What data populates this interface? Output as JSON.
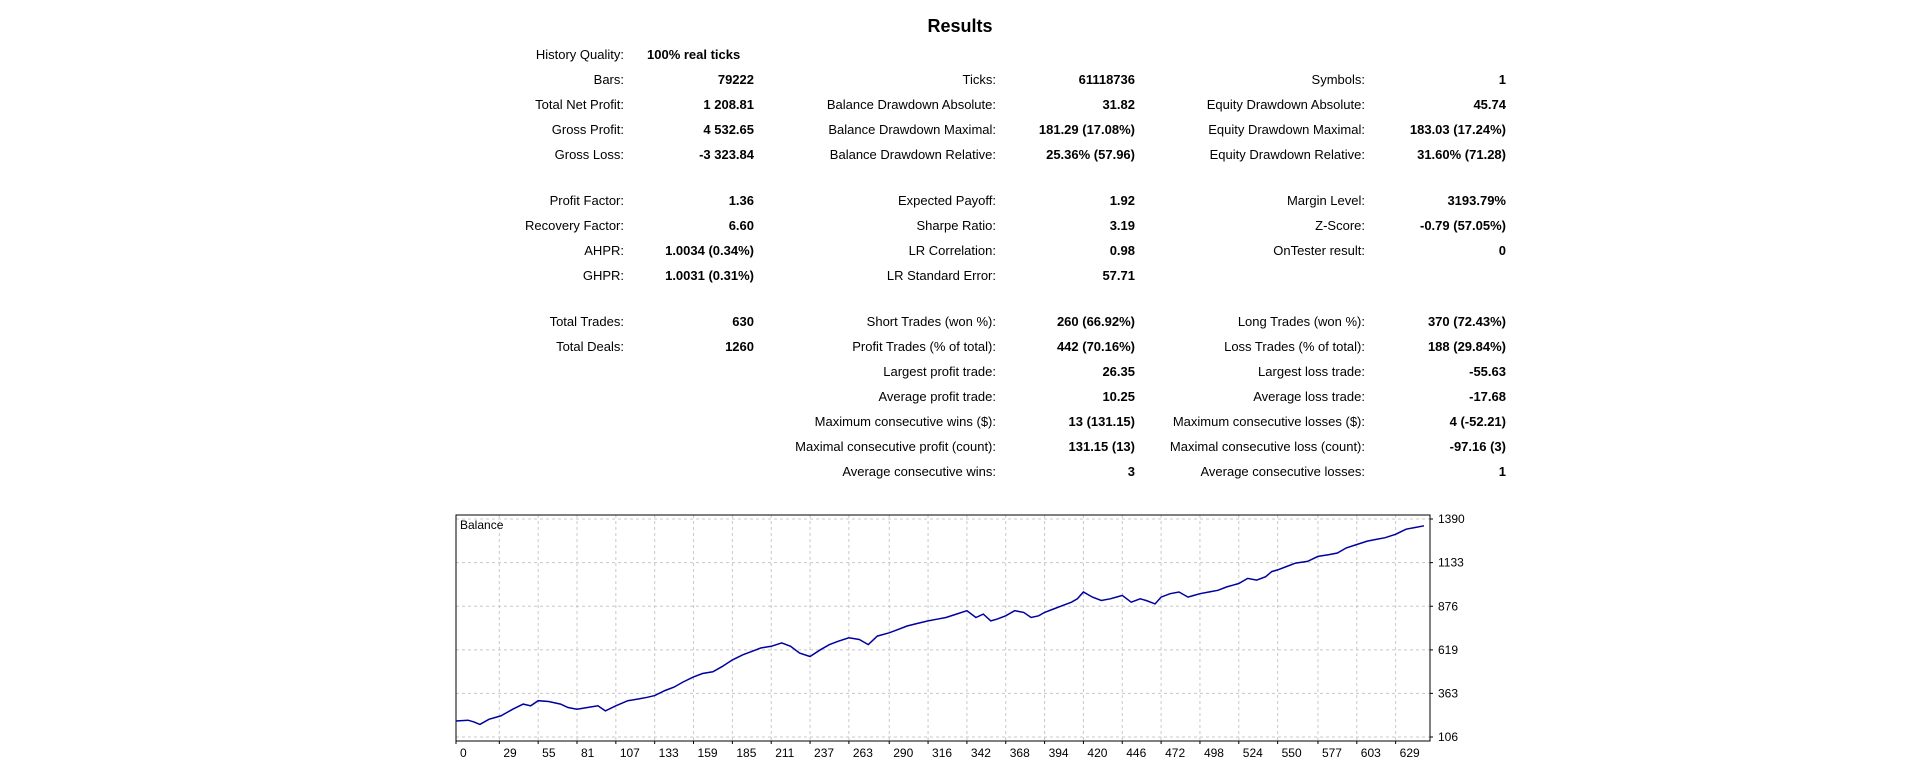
{
  "header": {
    "title": "Results"
  },
  "history_quality": {
    "label": "History Quality:",
    "value": "100% real ticks"
  },
  "col1": [
    {
      "key": "bars",
      "label": "Bars:",
      "value": "79222"
    },
    {
      "key": "total-net-profit",
      "label": "Total Net Profit:",
      "value": "1 208.81"
    },
    {
      "key": "gross-profit",
      "label": "Gross Profit:",
      "value": "4 532.65"
    },
    {
      "key": "gross-loss",
      "label": "Gross Loss:",
      "value": "-3 323.84"
    },
    {
      "key": "profit-factor",
      "label": "Profit Factor:",
      "value": "1.36"
    },
    {
      "key": "recovery-factor",
      "label": "Recovery Factor:",
      "value": "6.60"
    },
    {
      "key": "ahpr",
      "label": "AHPR:",
      "value": "1.0034 (0.34%)"
    },
    {
      "key": "ghpr",
      "label": "GHPR:",
      "value": "1.0031 (0.31%)"
    },
    {
      "key": "total-trades",
      "label": "Total Trades:",
      "value": "630"
    },
    {
      "key": "total-deals",
      "label": "Total Deals:",
      "value": "1260"
    }
  ],
  "col2": [
    {
      "key": "ticks",
      "label": "Ticks:",
      "value": "61118736"
    },
    {
      "key": "balance-drawdown-absolute",
      "label": "Balance Drawdown Absolute:",
      "value": "31.82"
    },
    {
      "key": "balance-drawdown-maximal",
      "label": "Balance Drawdown Maximal:",
      "value": "181.29 (17.08%)"
    },
    {
      "key": "balance-drawdown-relative",
      "label": "Balance Drawdown Relative:",
      "value": "25.36% (57.96)"
    },
    {
      "key": "expected-payoff",
      "label": "Expected Payoff:",
      "value": "1.92"
    },
    {
      "key": "sharpe-ratio",
      "label": "Sharpe Ratio:",
      "value": "3.19"
    },
    {
      "key": "lr-correlation",
      "label": "LR Correlation:",
      "value": "0.98"
    },
    {
      "key": "lr-standard-error",
      "label": "LR Standard Error:",
      "value": "57.71"
    },
    {
      "key": "short-trades",
      "label": "Short Trades (won %):",
      "value": "260 (66.92%)"
    },
    {
      "key": "profit-trades",
      "label": "Profit Trades (% of total):",
      "value": "442 (70.16%)"
    },
    {
      "key": "largest-profit-trade",
      "label": "Largest profit trade:",
      "value": "26.35"
    },
    {
      "key": "average-profit-trade",
      "label": "Average profit trade:",
      "value": "10.25"
    },
    {
      "key": "max-consecutive-wins",
      "label": "Maximum consecutive wins ($):",
      "value": "13 (131.15)"
    },
    {
      "key": "maximal-consecutive-profit",
      "label": "Maximal consecutive profit (count):",
      "value": "131.15 (13)"
    },
    {
      "key": "average-consecutive-wins",
      "label": "Average consecutive wins:",
      "value": "3"
    }
  ],
  "col3": [
    {
      "key": "symbols",
      "label": "Symbols:",
      "value": "1"
    },
    {
      "key": "equity-drawdown-absolute",
      "label": "Equity Drawdown Absolute:",
      "value": "45.74"
    },
    {
      "key": "equity-drawdown-maximal",
      "label": "Equity Drawdown Maximal:",
      "value": "183.03 (17.24%)"
    },
    {
      "key": "equity-drawdown-relative",
      "label": "Equity Drawdown Relative:",
      "value": "31.60% (71.28)"
    },
    {
      "key": "margin-level",
      "label": "Margin Level:",
      "value": "3193.79%"
    },
    {
      "key": "z-score",
      "label": "Z-Score:",
      "value": "-0.79 (57.05%)"
    },
    {
      "key": "ontester-result",
      "label": "OnTester result:",
      "value": "0"
    },
    {
      "key": "long-trades",
      "label": "Long Trades (won %):",
      "value": "370 (72.43%)"
    },
    {
      "key": "loss-trades",
      "label": "Loss Trades (% of total):",
      "value": "188 (29.84%)"
    },
    {
      "key": "largest-loss-trade",
      "label": "Largest loss trade:",
      "value": "-55.63"
    },
    {
      "key": "average-loss-trade",
      "label": "Average loss trade:",
      "value": "-17.68"
    },
    {
      "key": "max-consecutive-losses",
      "label": "Maximum consecutive losses ($):",
      "value": "4 (-52.21)"
    },
    {
      "key": "maximal-consecutive-loss",
      "label": "Maximal consecutive loss (count):",
      "value": "-97.16 (3)"
    },
    {
      "key": "average-consecutive-losses",
      "label": "Average consecutive losses:",
      "value": "1"
    }
  ],
  "chart_data": {
    "type": "line",
    "title": "Balance",
    "x_ticks": [
      "0",
      "29",
      "55",
      "81",
      "107",
      "133",
      "159",
      "185",
      "211",
      "237",
      "263",
      "290",
      "316",
      "342",
      "368",
      "394",
      "420",
      "446",
      "472",
      "498",
      "524",
      "550",
      "577",
      "603",
      "629"
    ],
    "y_ticks": [
      "106",
      "363",
      "619",
      "876",
      "1133",
      "1390"
    ],
    "xlim": [
      0,
      652
    ],
    "ylim": [
      106,
      1390
    ],
    "grid": true,
    "line_color": "#0000a0",
    "series": [
      {
        "x": [
          0,
          8,
          12,
          16,
          22,
          30,
          38,
          45,
          50,
          55,
          62,
          70,
          75,
          81,
          88,
          95,
          100,
          107,
          115,
          122,
          128,
          133,
          140,
          146,
          152,
          159,
          165,
          172,
          178,
          185,
          192,
          198,
          204,
          211,
          218,
          224,
          230,
          237,
          244,
          250,
          256,
          263,
          270,
          276,
          282,
          290,
          296,
          302,
          309,
          316,
          322,
          328,
          335,
          342,
          348,
          353,
          358,
          362,
          368,
          374,
          380,
          385,
          390,
          394,
          400,
          406,
          412,
          416,
          420,
          426,
          432,
          438,
          442,
          446,
          452,
          458,
          462,
          468,
          472,
          478,
          484,
          490,
          494,
          498,
          504,
          510,
          516,
          520,
          524,
          530,
          536,
          542,
          546,
          550,
          556,
          562,
          570,
          577,
          584,
          590,
          596,
          603,
          610,
          616,
          622,
          629,
          636,
          642,
          648
        ],
        "y": [
          200,
          205,
          195,
          180,
          210,
          230,
          270,
          300,
          290,
          320,
          315,
          300,
          280,
          270,
          280,
          290,
          260,
          290,
          320,
          330,
          340,
          350,
          380,
          400,
          430,
          460,
          480,
          490,
          520,
          560,
          590,
          610,
          630,
          640,
          660,
          640,
          600,
          580,
          620,
          650,
          670,
          690,
          680,
          650,
          700,
          720,
          740,
          760,
          775,
          790,
          800,
          810,
          830,
          850,
          810,
          830,
          790,
          800,
          820,
          850,
          840,
          810,
          820,
          840,
          860,
          880,
          900,
          920,
          960,
          930,
          910,
          920,
          930,
          940,
          900,
          920,
          910,
          890,
          930,
          950,
          960,
          930,
          940,
          950,
          960,
          970,
          990,
          1000,
          1010,
          1040,
          1030,
          1050,
          1080,
          1090,
          1110,
          1130,
          1140,
          1170,
          1180,
          1190,
          1220,
          1240,
          1260,
          1270,
          1280,
          1300,
          1330,
          1340,
          1350
        ]
      }
    ]
  }
}
